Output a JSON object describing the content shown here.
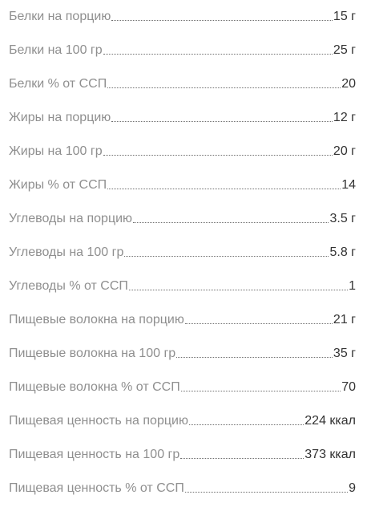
{
  "nutrition": [
    {
      "label": "Белки на порцию",
      "value": "15 г"
    },
    {
      "label": "Белки на 100 гр",
      "value": "25 г"
    },
    {
      "label": "Белки % от ССП",
      "value": "20"
    },
    {
      "label": "Жиры на порцию",
      "value": "12 г"
    },
    {
      "label": "Жиры на 100 гр",
      "value": "20 г"
    },
    {
      "label": "Жиры % от ССП",
      "value": "14"
    },
    {
      "label": "Углеводы на порцию",
      "value": "3.5 г"
    },
    {
      "label": "Углеводы на 100 гр",
      "value": "5.8 г"
    },
    {
      "label": "Углеводы % от ССП",
      "value": "1"
    },
    {
      "label": "Пищевые волокна на порцию",
      "value": "21 г"
    },
    {
      "label": "Пищевые волокна на 100 гр",
      "value": "35 г"
    },
    {
      "label": "Пищевые волокна % от ССП",
      "value": "70"
    },
    {
      "label": "Пищевая ценность на порцию",
      "value": "224 ккал"
    },
    {
      "label": "Пищевая ценность на 100 гр",
      "value": "373 ккал"
    },
    {
      "label": "Пищевая ценность % от ССП",
      "value": "9"
    }
  ]
}
